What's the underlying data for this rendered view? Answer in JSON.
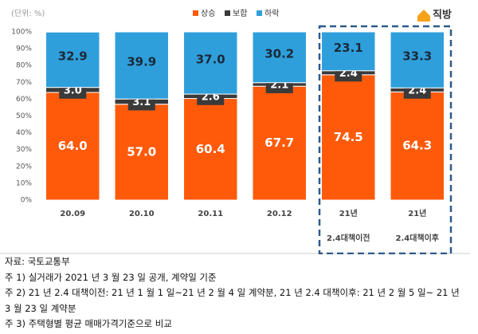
{
  "chart_data": {
    "type": "stacked-bar",
    "unit_label": "(단위: %)",
    "logo": "직방",
    "categories": [
      [
        "20.09"
      ],
      [
        "20.10"
      ],
      [
        "20.11"
      ],
      [
        "20.12"
      ],
      [
        "21년",
        "2.4대책이전"
      ],
      [
        "21년",
        "2.4대책이후"
      ]
    ],
    "series": [
      {
        "name": "상승",
        "color": "#ff5a0a",
        "values": [
          64.0,
          57.0,
          60.4,
          67.7,
          74.5,
          64.3
        ],
        "value_labels": [
          "64.0",
          "57.0",
          "60.4",
          "67.7",
          "74.5",
          "64.3"
        ]
      },
      {
        "name": "보합",
        "color": "#3a3a3a",
        "values": [
          3.0,
          3.1,
          2.6,
          2.1,
          2.4,
          2.4
        ],
        "value_labels": [
          "3.0",
          "3.1",
          "2.6",
          "2.1",
          "2.4",
          "2.4"
        ]
      },
      {
        "name": "하락",
        "color": "#2f9fdb",
        "values": [
          32.9,
          39.9,
          37.0,
          30.2,
          23.1,
          33.3
        ],
        "value_labels": [
          "32.9",
          "39.9",
          "37.0",
          "30.2",
          "23.1",
          "33.3"
        ]
      }
    ],
    "ylim": [
      0,
      100
    ],
    "yticks": [
      {
        "value": 0,
        "label": "0%"
      },
      {
        "value": 10,
        "label": "10%"
      },
      {
        "value": 20,
        "label": "20%"
      },
      {
        "value": 30,
        "label": "30%"
      },
      {
        "value": 40,
        "label": "40%"
      },
      {
        "value": 50,
        "label": "50%"
      },
      {
        "value": 60,
        "label": "60%"
      },
      {
        "value": 70,
        "label": "70%"
      },
      {
        "value": 80,
        "label": "80%"
      },
      {
        "value": 90,
        "label": "90%"
      },
      {
        "value": 100,
        "label": "100%"
      }
    ],
    "legend": "top"
  },
  "notes": [
    "자료: 국토교통부",
    "주 1) 실거래가 2021 년 3 월 23 일 공개, 계약일 기준",
    "주 2) 21 년 2.4 대책이전: 21 년 1 월 1 일~21 년 2 월 4 일 계약분, 21 년 2.4 대책이후: 21 년 2 월 5 일~ 21 년 3 월 23 일 계약분",
    "주 3) 주택형별 평균 매매가격기준으로 비교"
  ]
}
